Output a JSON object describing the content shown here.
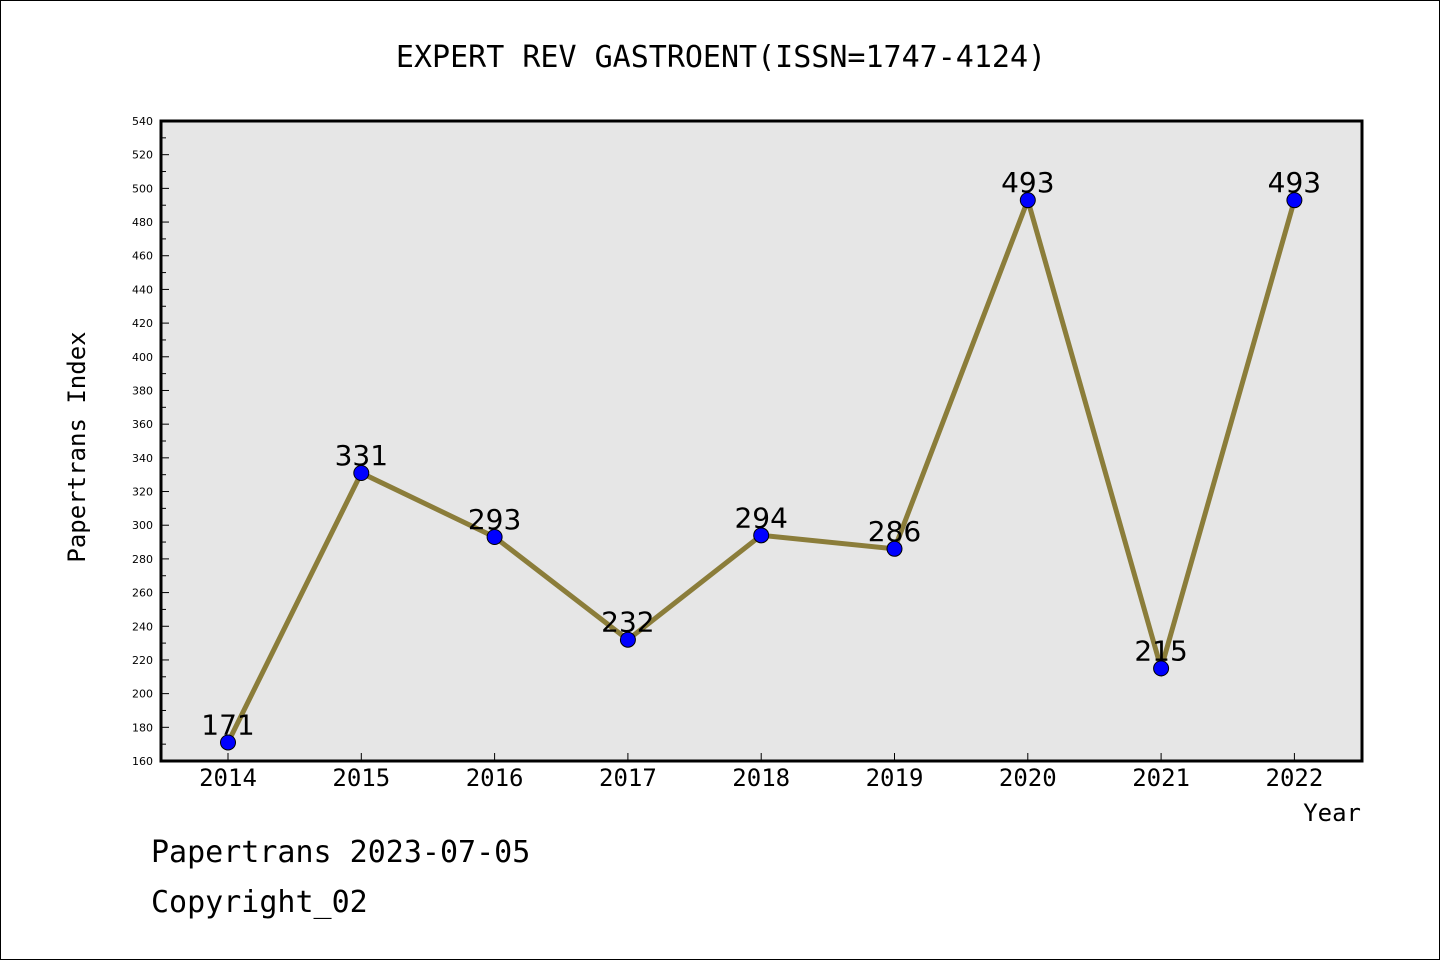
{
  "chart_data": {
    "type": "line",
    "title": "EXPERT REV GASTROENT(ISSN=1747-4124)",
    "xlabel": "Year",
    "ylabel": "Papertrans Index",
    "categories": [
      "2014",
      "2015",
      "2016",
      "2017",
      "2018",
      "2019",
      "2020",
      "2021",
      "2022"
    ],
    "series": [
      {
        "values": [
          171,
          331,
          293,
          232,
          294,
          286,
          493,
          215,
          493
        ]
      }
    ],
    "ylim": [
      160,
      540
    ],
    "ytick_step": 20,
    "yticks": [
      "160",
      "180",
      "200",
      "220",
      "240",
      "260",
      "280",
      "300",
      "320",
      "340",
      "360",
      "380",
      "400",
      "420",
      "440",
      "460",
      "480",
      "500",
      "520",
      "540"
    ],
    "grid": false,
    "legend": "none",
    "colors": {
      "line": "#8b7d3a",
      "marker": "#0000ff",
      "plot_background": "#e6e6e6",
      "frame": "#000000"
    }
  },
  "footer": {
    "line1": "Papertrans 2023-07-05",
    "line2": "Copyright_02"
  }
}
